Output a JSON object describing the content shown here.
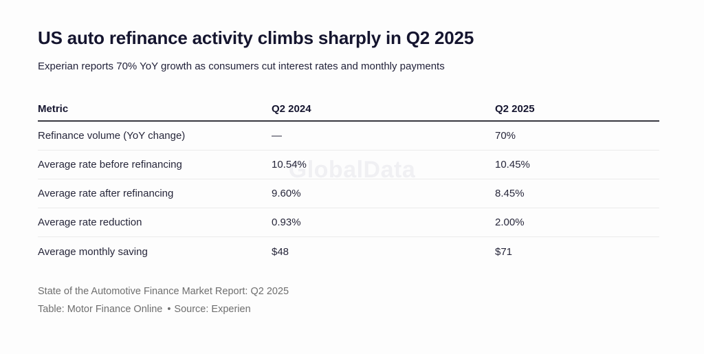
{
  "header": {
    "title": "US auto refinance activity climbs sharply in Q2 2025",
    "subtitle": "Experian reports 70% YoY growth as consumers cut interest rates and monthly payments"
  },
  "watermark": {
    "text": "GlobalData"
  },
  "table": {
    "columns": [
      "Metric",
      "Q2 2024",
      "Q2 2025"
    ],
    "rows": [
      [
        "Refinance volume (YoY change)",
        "—",
        "70%"
      ],
      [
        "Average rate before refinancing",
        "10.54%",
        "10.45%"
      ],
      [
        "Average rate after refinancing",
        "9.60%",
        "8.45%"
      ],
      [
        "Average rate reduction",
        "0.93%",
        "2.00%"
      ],
      [
        "Average monthly saving",
        "$48",
        "$71"
      ]
    ]
  },
  "footer": {
    "note": "State of the Automotive Finance Market Report: Q2 2025",
    "credit_table": "Table: Motor Finance Online",
    "bullet": "•",
    "credit_source": "Source: Experien"
  },
  "chart_data": {
    "type": "table",
    "title": "US auto refinance activity climbs sharply in Q2 2025",
    "subtitle": "Experian reports 70% YoY growth as consumers cut interest rates and monthly payments",
    "columns": [
      "Metric",
      "Q2 2024",
      "Q2 2025"
    ],
    "rows": [
      {
        "metric": "Refinance volume (YoY change)",
        "q2_2024": "—",
        "q2_2025": "70%"
      },
      {
        "metric": "Average rate before refinancing",
        "q2_2024": "10.54%",
        "q2_2025": "10.45%"
      },
      {
        "metric": "Average rate after refinancing",
        "q2_2024": "9.60%",
        "q2_2025": "8.45%"
      },
      {
        "metric": "Average rate reduction",
        "q2_2024": "0.93%",
        "q2_2025": "2.00%"
      },
      {
        "metric": "Average monthly saving",
        "q2_2024": "$48",
        "q2_2025": "$71"
      }
    ],
    "notes": [
      "State of the Automotive Finance Market Report: Q2 2025",
      "Table: Motor Finance Online • Source: Experien"
    ],
    "colors": {
      "title_text": "#15152f",
      "body_text": "#26263a",
      "header_rule": "#373740",
      "row_divider": "#ebebeb",
      "footer_text": "#6e6e6e",
      "watermark": "#f0f0f3",
      "background": "#fdfdfd"
    }
  }
}
